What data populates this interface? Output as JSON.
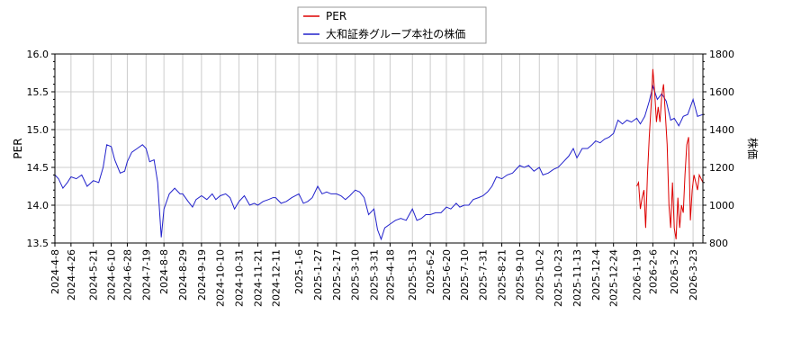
{
  "chart_data": {
    "type": "line",
    "legend": {
      "placement": "top-center",
      "entries": [
        {
          "label": "PER",
          "color": "#dd0000"
        },
        {
          "label": "大和証券グループ本社の株価",
          "color": "#2222cc"
        }
      ]
    },
    "ylabel_left": "PER",
    "ylabel_right": "株価",
    "ylim_left": [
      13.5,
      16.0
    ],
    "ylim_right": [
      800,
      1800
    ],
    "yticks_left": [
      "13.5",
      "14.0",
      "14.5",
      "15.0",
      "15.5",
      "16.0"
    ],
    "yticks_right": [
      "800",
      "1000",
      "1200",
      "1400",
      "1600",
      "1800"
    ],
    "xlim": [
      "2024-04-08",
      "2026-04-03"
    ],
    "xticks": [
      "2024-4-8",
      "2024-4-26",
      "2024-5-21",
      "2024-6-10",
      "2024-6-28",
      "2024-7-19",
      "2024-8-8",
      "2024-8-29",
      "2024-9-19",
      "2024-10-10",
      "2024-10-31",
      "2024-11-21",
      "2024-12-11",
      "2025-1-6",
      "2025-1-27",
      "2025-2-17",
      "2025-3-10",
      "2025-3-31",
      "2025-4-18",
      "2025-5-13",
      "2025-6-2",
      "2025-6-20",
      "2025-7-10",
      "2025-7-31",
      "2025-8-21",
      "2025-9-10",
      "2025-10-2",
      "2025-10-23",
      "2025-11-13",
      "2025-12-4",
      "2025-12-24",
      "2026-1-19",
      "2026-2-6",
      "2026-3-2",
      "2026-3-23"
    ],
    "grid": true,
    "series": [
      {
        "name": "大和証券グループ本社の株価",
        "axis": "right",
        "color": "#2222cc",
        "points": [
          [
            "2024-04-08",
            1160
          ],
          [
            "2024-04-12",
            1140
          ],
          [
            "2024-04-17",
            1090
          ],
          [
            "2024-04-22",
            1120
          ],
          [
            "2024-04-26",
            1150
          ],
          [
            "2024-05-02",
            1140
          ],
          [
            "2024-05-08",
            1160
          ],
          [
            "2024-05-14",
            1100
          ],
          [
            "2024-05-21",
            1130
          ],
          [
            "2024-05-27",
            1120
          ],
          [
            "2024-06-01",
            1200
          ],
          [
            "2024-06-05",
            1320
          ],
          [
            "2024-06-10",
            1310
          ],
          [
            "2024-06-14",
            1240
          ],
          [
            "2024-06-20",
            1170
          ],
          [
            "2024-06-25",
            1180
          ],
          [
            "2024-06-28",
            1230
          ],
          [
            "2024-07-03",
            1280
          ],
          [
            "2024-07-09",
            1300
          ],
          [
            "2024-07-15",
            1320
          ],
          [
            "2024-07-19",
            1300
          ],
          [
            "2024-07-23",
            1230
          ],
          [
            "2024-07-28",
            1240
          ],
          [
            "2024-08-01",
            1120
          ],
          [
            "2024-08-05",
            830
          ],
          [
            "2024-08-08",
            980
          ],
          [
            "2024-08-14",
            1060
          ],
          [
            "2024-08-20",
            1090
          ],
          [
            "2024-08-26",
            1060
          ],
          [
            "2024-08-29",
            1060
          ],
          [
            "2024-09-04",
            1020
          ],
          [
            "2024-09-09",
            990
          ],
          [
            "2024-09-13",
            1030
          ],
          [
            "2024-09-19",
            1050
          ],
          [
            "2024-09-25",
            1030
          ],
          [
            "2024-10-01",
            1060
          ],
          [
            "2024-10-05",
            1030
          ],
          [
            "2024-10-10",
            1050
          ],
          [
            "2024-10-16",
            1060
          ],
          [
            "2024-10-21",
            1040
          ],
          [
            "2024-10-26",
            980
          ],
          [
            "2024-10-31",
            1020
          ],
          [
            "2024-11-06",
            1050
          ],
          [
            "2024-11-12",
            1000
          ],
          [
            "2024-11-17",
            1010
          ],
          [
            "2024-11-21",
            1000
          ],
          [
            "2024-11-27",
            1020
          ],
          [
            "2024-12-03",
            1030
          ],
          [
            "2024-12-08",
            1040
          ],
          [
            "2024-12-11",
            1040
          ],
          [
            "2024-12-17",
            1010
          ],
          [
            "2024-12-23",
            1020
          ],
          [
            "2024-12-29",
            1040
          ],
          [
            "2025-01-06",
            1060
          ],
          [
            "2025-01-11",
            1010
          ],
          [
            "2025-01-16",
            1020
          ],
          [
            "2025-01-21",
            1040
          ],
          [
            "2025-01-27",
            1100
          ],
          [
            "2025-02-01",
            1060
          ],
          [
            "2025-02-06",
            1070
          ],
          [
            "2025-02-11",
            1060
          ],
          [
            "2025-02-17",
            1060
          ],
          [
            "2025-02-22",
            1050
          ],
          [
            "2025-02-27",
            1030
          ],
          [
            "2025-03-04",
            1050
          ],
          [
            "2025-03-10",
            1080
          ],
          [
            "2025-03-15",
            1070
          ],
          [
            "2025-03-20",
            1040
          ],
          [
            "2025-03-25",
            950
          ],
          [
            "2025-03-31",
            980
          ],
          [
            "2025-04-04",
            870
          ],
          [
            "2025-04-08",
            820
          ],
          [
            "2025-04-12",
            880
          ],
          [
            "2025-04-18",
            900
          ],
          [
            "2025-04-24",
            920
          ],
          [
            "2025-04-30",
            930
          ],
          [
            "2025-05-06",
            920
          ],
          [
            "2025-05-13",
            980
          ],
          [
            "2025-05-18",
            920
          ],
          [
            "2025-05-23",
            930
          ],
          [
            "2025-05-28",
            950
          ],
          [
            "2025-06-02",
            950
          ],
          [
            "2025-06-08",
            960
          ],
          [
            "2025-06-14",
            960
          ],
          [
            "2025-06-20",
            990
          ],
          [
            "2025-06-25",
            980
          ],
          [
            "2025-07-01",
            1010
          ],
          [
            "2025-07-05",
            990
          ],
          [
            "2025-07-10",
            1000
          ],
          [
            "2025-07-15",
            1000
          ],
          [
            "2025-07-20",
            1030
          ],
          [
            "2025-07-26",
            1040
          ],
          [
            "2025-07-31",
            1050
          ],
          [
            "2025-08-05",
            1070
          ],
          [
            "2025-08-10",
            1100
          ],
          [
            "2025-08-15",
            1150
          ],
          [
            "2025-08-21",
            1140
          ],
          [
            "2025-08-27",
            1160
          ],
          [
            "2025-09-02",
            1170
          ],
          [
            "2025-09-06",
            1190
          ],
          [
            "2025-09-10",
            1210
          ],
          [
            "2025-09-15",
            1200
          ],
          [
            "2025-09-20",
            1210
          ],
          [
            "2025-09-26",
            1180
          ],
          [
            "2025-10-02",
            1200
          ],
          [
            "2025-10-06",
            1160
          ],
          [
            "2025-10-12",
            1170
          ],
          [
            "2025-10-18",
            1190
          ],
          [
            "2025-10-23",
            1200
          ],
          [
            "2025-10-29",
            1230
          ],
          [
            "2025-11-04",
            1260
          ],
          [
            "2025-11-09",
            1300
          ],
          [
            "2025-11-13",
            1250
          ],
          [
            "2025-11-19",
            1300
          ],
          [
            "2025-11-25",
            1300
          ],
          [
            "2025-11-30",
            1320
          ],
          [
            "2025-12-04",
            1340
          ],
          [
            "2025-12-09",
            1330
          ],
          [
            "2025-12-14",
            1350
          ],
          [
            "2025-12-19",
            1360
          ],
          [
            "2025-12-24",
            1380
          ],
          [
            "2025-12-29",
            1450
          ],
          [
            "2026-01-03",
            1430
          ],
          [
            "2026-01-08",
            1450
          ],
          [
            "2026-01-13",
            1440
          ],
          [
            "2026-01-19",
            1460
          ],
          [
            "2026-01-23",
            1430
          ],
          [
            "2026-01-28",
            1470
          ],
          [
            "2026-02-02",
            1550
          ],
          [
            "2026-02-06",
            1630
          ],
          [
            "2026-02-11",
            1560
          ],
          [
            "2026-02-16",
            1590
          ],
          [
            "2026-02-21",
            1550
          ],
          [
            "2026-02-26",
            1450
          ],
          [
            "2026-03-02",
            1460
          ],
          [
            "2026-03-07",
            1420
          ],
          [
            "2026-03-12",
            1470
          ],
          [
            "2026-03-17",
            1480
          ],
          [
            "2026-03-23",
            1560
          ],
          [
            "2026-03-28",
            1470
          ],
          [
            "2026-04-03",
            1480
          ]
        ]
      },
      {
        "name": "PER",
        "axis": "left",
        "color": "#dd0000",
        "points": [
          [
            "2026-01-19",
            14.25
          ],
          [
            "2026-01-21",
            14.3
          ],
          [
            "2026-01-23",
            13.95
          ],
          [
            "2026-01-25",
            14.1
          ],
          [
            "2026-01-27",
            14.2
          ],
          [
            "2026-01-29",
            13.7
          ],
          [
            "2026-01-31",
            14.4
          ],
          [
            "2026-02-02",
            14.9
          ],
          [
            "2026-02-04",
            15.3
          ],
          [
            "2026-02-06",
            15.8
          ],
          [
            "2026-02-08",
            15.5
          ],
          [
            "2026-02-10",
            15.1
          ],
          [
            "2026-02-12",
            15.3
          ],
          [
            "2026-02-14",
            15.1
          ],
          [
            "2026-02-16",
            15.45
          ],
          [
            "2026-02-18",
            15.6
          ],
          [
            "2026-02-20",
            15.2
          ],
          [
            "2026-02-22",
            14.8
          ],
          [
            "2026-02-24",
            14.0
          ],
          [
            "2026-02-26",
            13.7
          ],
          [
            "2026-02-28",
            14.3
          ],
          [
            "2026-03-02",
            13.7
          ],
          [
            "2026-03-04",
            13.55
          ],
          [
            "2026-03-06",
            14.1
          ],
          [
            "2026-03-08",
            13.7
          ],
          [
            "2026-03-10",
            14.0
          ],
          [
            "2026-03-12",
            13.9
          ],
          [
            "2026-03-14",
            14.4
          ],
          [
            "2026-03-16",
            14.8
          ],
          [
            "2026-03-18",
            14.9
          ],
          [
            "2026-03-20",
            13.8
          ],
          [
            "2026-03-22",
            14.2
          ],
          [
            "2026-03-24",
            14.4
          ],
          [
            "2026-03-26",
            14.3
          ],
          [
            "2026-03-28",
            14.2
          ],
          [
            "2026-03-30",
            14.4
          ],
          [
            "2026-04-03",
            14.3
          ]
        ]
      }
    ]
  }
}
